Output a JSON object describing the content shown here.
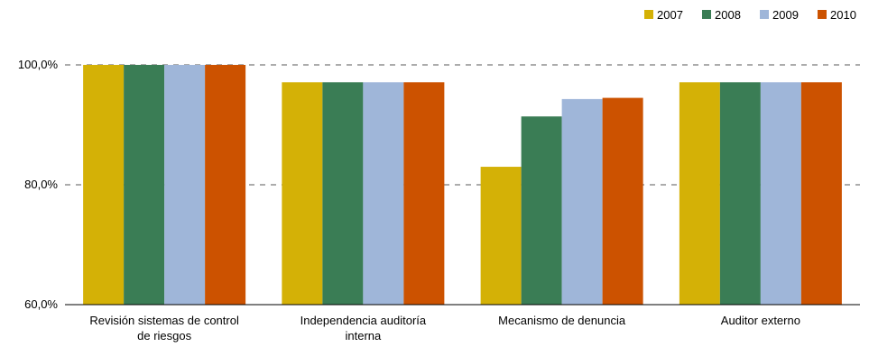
{
  "chart_data": {
    "type": "bar",
    "title": "",
    "xlabel": "",
    "ylabel": "",
    "categories": [
      [
        "Revisión sistemas de control",
        "de riesgos"
      ],
      [
        "Independencia auditoría",
        "interna"
      ],
      [
        "Mecanismo de denuncia"
      ],
      [
        "Auditor externo"
      ]
    ],
    "series": [
      {
        "name": "2007",
        "color": "#d4b106",
        "values": [
          100.0,
          97.1,
          83.0,
          97.1
        ]
      },
      {
        "name": "2008",
        "color": "#3a7d55",
        "values": [
          100.0,
          97.1,
          91.4,
          97.1
        ]
      },
      {
        "name": "2009",
        "color": "#9fb6d9",
        "values": [
          100.0,
          97.1,
          94.3,
          97.1
        ]
      },
      {
        "name": "2010",
        "color": "#cc5200",
        "values": [
          100.0,
          97.1,
          94.5,
          97.1
        ]
      }
    ],
    "ylim": [
      60,
      100
    ],
    "yticks": [
      {
        "value": 60,
        "label": "60,0%"
      },
      {
        "value": 80,
        "label": "80,0%"
      },
      {
        "value": 100,
        "label": "100,0%"
      }
    ],
    "grid": true,
    "legend": "top-right"
  }
}
